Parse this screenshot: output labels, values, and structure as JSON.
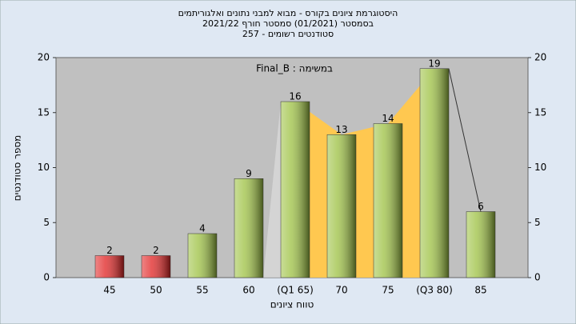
{
  "chart_data": {
    "type": "bar",
    "title": [
      "היסטוגרמת ציונים בקורס - מבוא למבני נתונים ואלגוריתמים",
      "בסמסטר  (01/2021)  סמסטר חורף 2021/22",
      "סטודנטים רשומים - 257"
    ],
    "annotation": "Final_B : במשימה",
    "x_label": "טווח ציונים",
    "y_label": "מספר סטודנטים",
    "categories": [
      "45",
      "50",
      "55",
      "60",
      "(Q1 65)",
      "70",
      "75",
      "(Q3 80)",
      "85"
    ],
    "values": [
      2,
      2,
      4,
      9,
      16,
      13,
      14,
      19,
      6
    ],
    "colors": [
      "#e02020",
      "#e02020",
      "#9cc040",
      "#9cc040",
      "#9cc040",
      "#9cc040",
      "#9cc040",
      "#9cc040",
      "#9cc040"
    ],
    "ylim": [
      0,
      20
    ],
    "yticks": [
      0,
      5,
      10,
      15,
      20
    ]
  }
}
